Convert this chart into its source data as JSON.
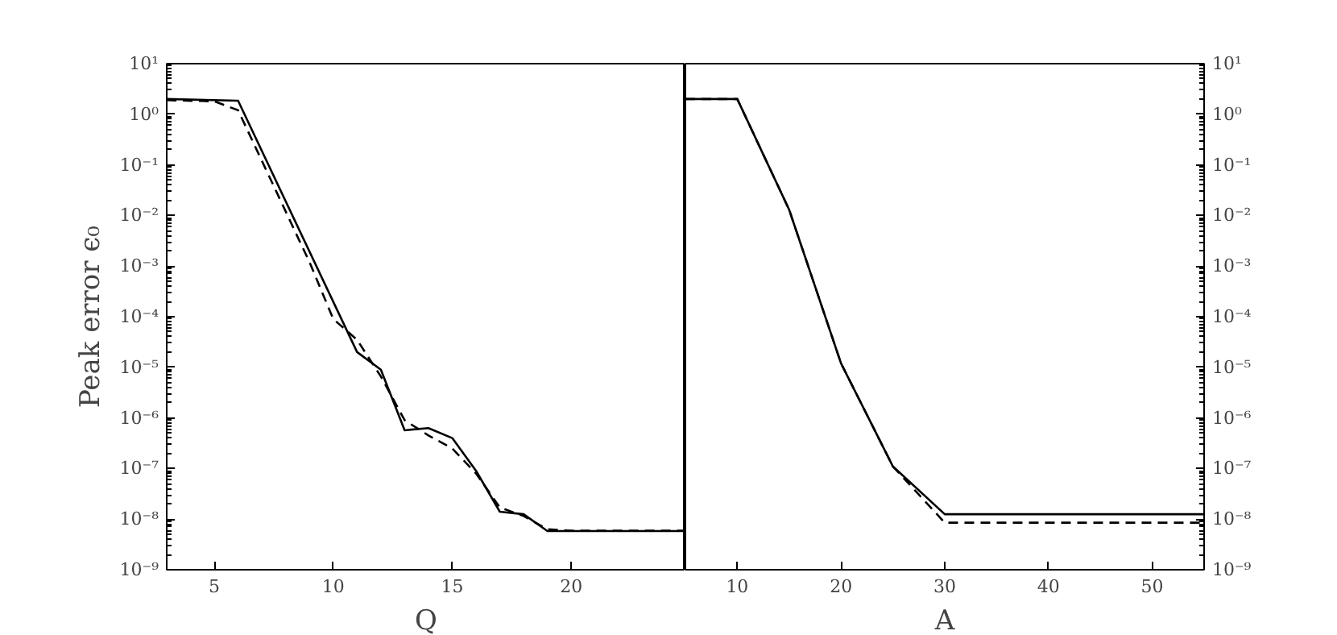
{
  "chart_data": [
    {
      "type": "line",
      "xlabel": "Q",
      "ylabel": "Peak error ϵ₀",
      "log": "y",
      "grid": false,
      "marker": "none",
      "xlim": [
        3,
        24.8
      ],
      "xticks": [
        5,
        10,
        15,
        20
      ],
      "ylim": [
        1e-09,
        10
      ],
      "yticks": [
        {
          "value": 1e-09,
          "label": "10⁻⁹"
        },
        {
          "value": 1e-08,
          "label": "10⁻⁸"
        },
        {
          "value": 1e-07,
          "label": "10⁻⁷"
        },
        {
          "value": 1e-06,
          "label": "10⁻⁶"
        },
        {
          "value": 1e-05,
          "label": "10⁻⁵"
        },
        {
          "value": 0.0001,
          "label": "10⁻⁴"
        },
        {
          "value": 0.001,
          "label": "10⁻³"
        },
        {
          "value": 0.01,
          "label": "10⁻²"
        },
        {
          "value": 0.1,
          "label": "10⁻¹"
        },
        {
          "value": 1,
          "label": "10⁰"
        },
        {
          "value": 10,
          "label": "10¹"
        }
      ],
      "series": [
        {
          "color": "#000000",
          "line_style": "solid",
          "x": [
            3,
            5,
            6,
            11,
            12,
            13,
            14,
            15,
            16,
            17,
            18,
            19,
            24.8
          ],
          "values": [
            2.0,
            1.9,
            1.85,
            2e-05,
            9e-06,
            5.7e-07,
            6.3e-07,
            4e-07,
            9e-08,
            1.4e-08,
            1.25e-08,
            5.8e-09,
            5.8e-09
          ]
        },
        {
          "color": "#000000",
          "line_style": "dashed",
          "x": [
            3,
            5,
            6,
            7,
            8,
            9,
            10,
            11,
            12,
            13,
            14,
            15,
            16,
            17,
            18,
            19,
            20,
            24.8
          ],
          "values": [
            1.9,
            1.8,
            1.2,
            0.12,
            0.012,
            0.0012,
            9e-05,
            3.5e-05,
            6.6e-06,
            9e-07,
            4.5e-07,
            2.5e-07,
            8e-08,
            1.7e-08,
            1.15e-08,
            6.3e-09,
            5.9e-09,
            5.9e-09
          ]
        }
      ]
    },
    {
      "type": "line",
      "xlabel": "A",
      "log": "y",
      "grid": false,
      "marker": "none",
      "xlim": [
        5,
        55
      ],
      "xticks": [
        10,
        20,
        30,
        40,
        50
      ],
      "ylim": [
        1e-09,
        10
      ],
      "yticks": [
        {
          "value": 1e-09,
          "label": "10⁻⁹"
        },
        {
          "value": 1e-08,
          "label": "10⁻⁸"
        },
        {
          "value": 1e-07,
          "label": "10⁻⁷"
        },
        {
          "value": 1e-06,
          "label": "10⁻⁶"
        },
        {
          "value": 1e-05,
          "label": "10⁻⁵"
        },
        {
          "value": 0.0001,
          "label": "10⁻⁴"
        },
        {
          "value": 0.001,
          "label": "10⁻³"
        },
        {
          "value": 0.01,
          "label": "10⁻²"
        },
        {
          "value": 0.1,
          "label": "10⁻¹"
        },
        {
          "value": 1,
          "label": "10⁰"
        },
        {
          "value": 10,
          "label": "10¹"
        }
      ],
      "series": [
        {
          "color": "#000000",
          "line_style": "solid",
          "x": [
            5,
            10,
            15,
            20,
            25,
            30,
            55
          ],
          "values": [
            2.0,
            2.0,
            0.013,
            1.2e-05,
            1.1e-07,
            1.25e-08,
            1.25e-08
          ]
        },
        {
          "color": "#000000",
          "line_style": "dashed",
          "x": [
            5,
            10,
            15,
            20,
            25,
            30,
            55
          ],
          "values": [
            2.0,
            2.0,
            0.013,
            1.2e-05,
            1.1e-07,
            8.5e-09,
            8.5e-09
          ]
        }
      ]
    }
  ]
}
